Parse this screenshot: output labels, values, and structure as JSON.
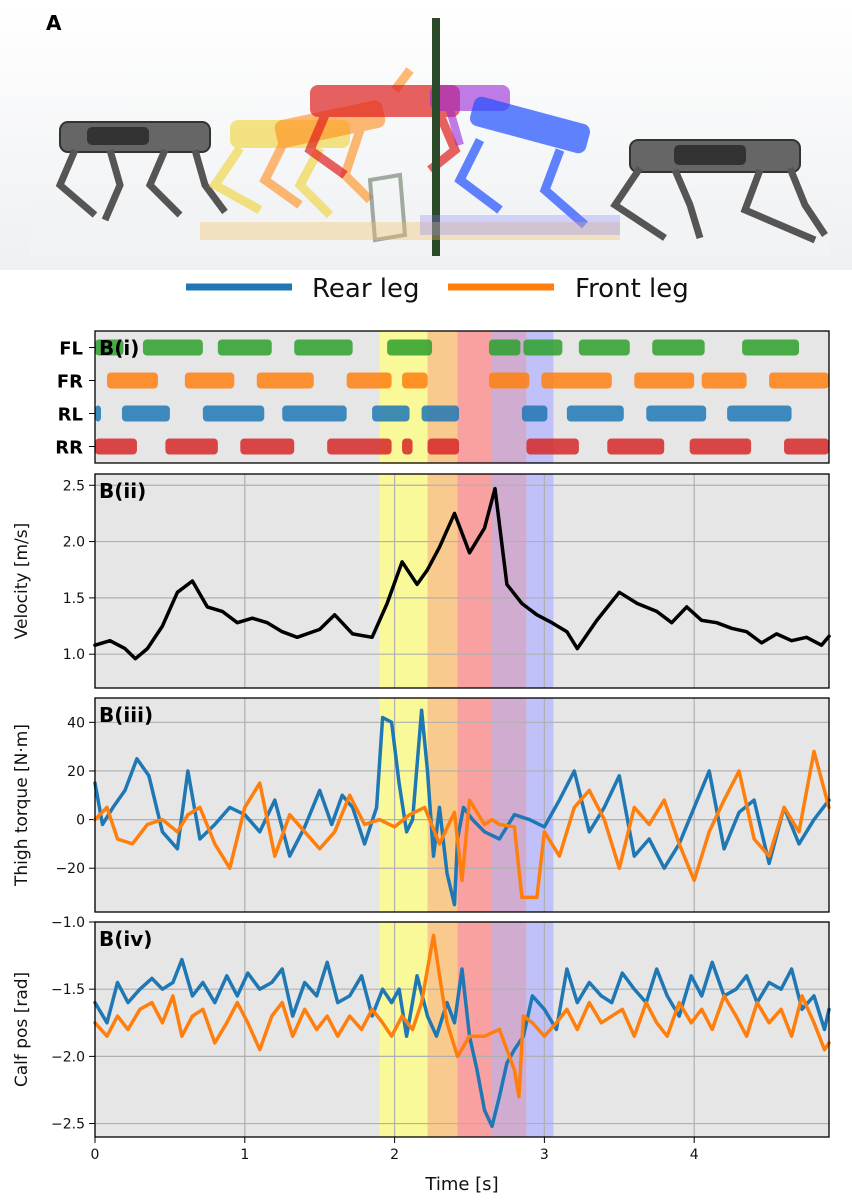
{
  "panel_a": {
    "label": "A"
  },
  "legend": [
    {
      "name": "Rear leg",
      "color": "#1f77b4"
    },
    {
      "name": "Front leg",
      "color": "#ff7f0e"
    }
  ],
  "chart_data": [
    {
      "type": "gait",
      "panel_label": "B(i)",
      "legs": [
        {
          "name": "FL",
          "color": "#2ca02c",
          "stance": [
            [
              0.0,
              0.19
            ],
            [
              0.32,
              0.72
            ],
            [
              0.82,
              1.18
            ],
            [
              1.33,
              1.72
            ],
            [
              1.95,
              2.25
            ],
            [
              2.63,
              2.84
            ],
            [
              2.86,
              3.12
            ],
            [
              3.23,
              3.57
            ],
            [
              3.72,
              4.07
            ],
            [
              4.32,
              4.7
            ]
          ]
        },
        {
          "name": "FR",
          "color": "#ff7f0e",
          "stance": [
            [
              0.08,
              0.42
            ],
            [
              0.6,
              0.93
            ],
            [
              1.08,
              1.46
            ],
            [
              1.68,
              1.98
            ],
            [
              2.05,
              2.22
            ],
            [
              2.63,
              2.9
            ],
            [
              2.98,
              3.45
            ],
            [
              3.6,
              4.0
            ],
            [
              4.05,
              4.35
            ],
            [
              4.5,
              4.9
            ]
          ]
        },
        {
          "name": "RL",
          "color": "#1f77b4",
          "stance": [
            [
              0.0,
              0.04
            ],
            [
              0.18,
              0.5
            ],
            [
              0.72,
              1.13
            ],
            [
              1.25,
              1.68
            ],
            [
              1.85,
              2.1
            ],
            [
              2.18,
              2.43
            ],
            [
              2.85,
              3.02
            ],
            [
              3.15,
              3.53
            ],
            [
              3.68,
              4.08
            ],
            [
              4.22,
              4.65
            ]
          ]
        },
        {
          "name": "RR",
          "color": "#d62728",
          "stance": [
            [
              0.0,
              0.28
            ],
            [
              0.47,
              0.82
            ],
            [
              0.97,
              1.33
            ],
            [
              1.55,
              1.98
            ],
            [
              2.05,
              2.12
            ],
            [
              2.22,
              2.43
            ],
            [
              2.88,
              3.23
            ],
            [
              3.42,
              3.8
            ],
            [
              3.97,
              4.38
            ],
            [
              4.6,
              4.9
            ]
          ]
        }
      ],
      "xlim": [
        0,
        4.9
      ]
    },
    {
      "type": "line",
      "panel_label": "B(ii)",
      "ylabel": "Velocity [m/s]",
      "ylim": [
        0.7,
        2.6
      ],
      "yticks": [
        1.0,
        1.5,
        2.0,
        2.5
      ],
      "xlim": [
        0,
        4.9
      ],
      "series": [
        {
          "color": "#000000",
          "x": [
            0.0,
            0.1,
            0.2,
            0.27,
            0.35,
            0.45,
            0.55,
            0.65,
            0.75,
            0.85,
            0.95,
            1.05,
            1.15,
            1.25,
            1.35,
            1.5,
            1.6,
            1.72,
            1.85,
            1.95,
            2.05,
            2.15,
            2.22,
            2.3,
            2.4,
            2.5,
            2.6,
            2.67,
            2.75,
            2.85,
            2.95,
            3.05,
            3.15,
            3.22,
            3.35,
            3.5,
            3.62,
            3.75,
            3.85,
            3.95,
            4.05,
            4.15,
            4.25,
            4.35,
            4.45,
            4.55,
            4.65,
            4.75,
            4.85,
            4.9
          ],
          "y": [
            1.08,
            1.12,
            1.05,
            0.96,
            1.05,
            1.25,
            1.55,
            1.65,
            1.42,
            1.38,
            1.28,
            1.32,
            1.28,
            1.2,
            1.15,
            1.22,
            1.35,
            1.18,
            1.15,
            1.45,
            1.82,
            1.62,
            1.75,
            1.95,
            2.25,
            1.9,
            2.12,
            2.47,
            1.62,
            1.45,
            1.35,
            1.28,
            1.2,
            1.05,
            1.3,
            1.55,
            1.45,
            1.38,
            1.28,
            1.42,
            1.3,
            1.28,
            1.23,
            1.2,
            1.1,
            1.18,
            1.12,
            1.15,
            1.08,
            1.16
          ]
        }
      ]
    },
    {
      "type": "line",
      "panel_label": "B(iii)",
      "ylabel": "Thigh torque [N·m]",
      "ylim": [
        -38,
        50
      ],
      "yticks": [
        -20,
        0,
        20,
        40
      ],
      "xlim": [
        0,
        4.9
      ],
      "series": [
        {
          "name": "Rear leg",
          "color": "#1f77b4",
          "x": [
            0.0,
            0.05,
            0.12,
            0.2,
            0.28,
            0.36,
            0.45,
            0.55,
            0.62,
            0.7,
            0.8,
            0.9,
            1.0,
            1.1,
            1.2,
            1.3,
            1.4,
            1.5,
            1.58,
            1.65,
            1.72,
            1.8,
            1.88,
            1.92,
            1.98,
            2.03,
            2.08,
            2.12,
            2.18,
            2.22,
            2.26,
            2.3,
            2.35,
            2.4,
            2.42,
            2.46,
            2.52,
            2.6,
            2.7,
            2.8,
            2.9,
            3.0,
            3.1,
            3.2,
            3.3,
            3.4,
            3.5,
            3.6,
            3.7,
            3.8,
            3.9,
            4.0,
            4.1,
            4.2,
            4.3,
            4.4,
            4.5,
            4.6,
            4.7,
            4.8,
            4.9
          ],
          "y": [
            15,
            -2,
            5,
            12,
            25,
            18,
            -5,
            -12,
            20,
            -8,
            -2,
            5,
            2,
            -5,
            8,
            -15,
            -3,
            12,
            -2,
            10,
            5,
            -10,
            5,
            42,
            40,
            15,
            -5,
            0,
            45,
            20,
            -15,
            5,
            -22,
            -35,
            -8,
            5,
            0,
            -5,
            -8,
            2,
            0,
            -3,
            8,
            20,
            -5,
            5,
            18,
            -15,
            -8,
            -20,
            -10,
            5,
            20,
            -12,
            3,
            8,
            -18,
            5,
            -10,
            0,
            8
          ]
        },
        {
          "name": "Front leg",
          "color": "#ff7f0e",
          "x": [
            0.0,
            0.08,
            0.15,
            0.25,
            0.35,
            0.45,
            0.55,
            0.62,
            0.7,
            0.8,
            0.9,
            1.0,
            1.1,
            1.2,
            1.3,
            1.4,
            1.5,
            1.6,
            1.7,
            1.8,
            1.9,
            2.0,
            2.1,
            2.2,
            2.3,
            2.4,
            2.45,
            2.5,
            2.6,
            2.65,
            2.7,
            2.8,
            2.85,
            2.9,
            2.95,
            3.0,
            3.1,
            3.2,
            3.3,
            3.4,
            3.5,
            3.6,
            3.7,
            3.8,
            3.9,
            4.0,
            4.1,
            4.2,
            4.3,
            4.4,
            4.5,
            4.6,
            4.7,
            4.8,
            4.9
          ],
          "y": [
            0,
            5,
            -8,
            -10,
            -2,
            0,
            -5,
            2,
            5,
            -10,
            -20,
            5,
            15,
            -15,
            2,
            -5,
            -12,
            -5,
            10,
            -2,
            0,
            -3,
            2,
            5,
            -10,
            3,
            -25,
            8,
            -2,
            0,
            -2,
            -3,
            -32,
            -32,
            -32,
            -5,
            -15,
            5,
            12,
            0,
            -20,
            5,
            -2,
            8,
            -10,
            -25,
            -5,
            8,
            20,
            -8,
            -15,
            5,
            -5,
            28,
            5
          ]
        }
      ]
    },
    {
      "type": "line",
      "panel_label": "B(iv)",
      "ylabel": "Calf pos [rad]",
      "xlabel": "Time [s]",
      "ylim": [
        -2.6,
        -1.0
      ],
      "yticks": [
        -2.5,
        -2.0,
        -1.5,
        -1.0
      ],
      "xlim": [
        0,
        4.9
      ],
      "xticks": [
        0,
        1,
        2,
        3,
        4
      ],
      "series": [
        {
          "name": "Rear leg",
          "color": "#1f77b4",
          "x": [
            0.0,
            0.08,
            0.15,
            0.22,
            0.3,
            0.38,
            0.45,
            0.52,
            0.58,
            0.65,
            0.72,
            0.8,
            0.88,
            0.95,
            1.02,
            1.1,
            1.18,
            1.25,
            1.32,
            1.4,
            1.48,
            1.55,
            1.62,
            1.7,
            1.78,
            1.85,
            1.92,
            1.98,
            2.03,
            2.08,
            2.15,
            2.22,
            2.28,
            2.35,
            2.4,
            2.45,
            2.5,
            2.55,
            2.6,
            2.65,
            2.7,
            2.75,
            2.8,
            2.86,
            2.92,
            3.0,
            3.08,
            3.15,
            3.22,
            3.3,
            3.38,
            3.45,
            3.52,
            3.6,
            3.68,
            3.75,
            3.82,
            3.9,
            3.98,
            4.05,
            4.12,
            4.2,
            4.28,
            4.35,
            4.42,
            4.5,
            4.58,
            4.65,
            4.72,
            4.8,
            4.87,
            4.9
          ],
          "y": [
            -1.6,
            -1.75,
            -1.45,
            -1.6,
            -1.5,
            -1.42,
            -1.5,
            -1.45,
            -1.28,
            -1.55,
            -1.45,
            -1.6,
            -1.4,
            -1.55,
            -1.38,
            -1.5,
            -1.45,
            -1.35,
            -1.7,
            -1.45,
            -1.55,
            -1.3,
            -1.6,
            -1.55,
            -1.4,
            -1.7,
            -1.5,
            -1.6,
            -1.5,
            -1.85,
            -1.4,
            -1.7,
            -1.85,
            -1.6,
            -1.75,
            -1.35,
            -1.85,
            -2.1,
            -2.4,
            -2.52,
            -2.3,
            -2.05,
            -1.95,
            -1.85,
            -1.55,
            -1.65,
            -1.8,
            -1.35,
            -1.6,
            -1.45,
            -1.55,
            -1.6,
            -1.38,
            -1.5,
            -1.6,
            -1.35,
            -1.55,
            -1.7,
            -1.4,
            -1.55,
            -1.3,
            -1.55,
            -1.5,
            -1.4,
            -1.6,
            -1.45,
            -1.5,
            -1.35,
            -1.65,
            -1.55,
            -1.8,
            -1.65
          ]
        },
        {
          "name": "Front leg",
          "color": "#ff7f0e",
          "x": [
            0.0,
            0.08,
            0.15,
            0.22,
            0.3,
            0.38,
            0.45,
            0.52,
            0.58,
            0.65,
            0.72,
            0.8,
            0.88,
            0.95,
            1.02,
            1.1,
            1.18,
            1.25,
            1.32,
            1.4,
            1.48,
            1.55,
            1.62,
            1.7,
            1.78,
            1.85,
            1.92,
            1.98,
            2.05,
            2.12,
            2.18,
            2.22,
            2.26,
            2.3,
            2.35,
            2.42,
            2.5,
            2.6,
            2.7,
            2.75,
            2.8,
            2.83,
            2.86,
            2.92,
            3.0,
            3.08,
            3.15,
            3.22,
            3.3,
            3.38,
            3.45,
            3.52,
            3.6,
            3.68,
            3.75,
            3.82,
            3.9,
            3.98,
            4.05,
            4.12,
            4.2,
            4.28,
            4.35,
            4.42,
            4.5,
            4.58,
            4.65,
            4.72,
            4.8,
            4.87,
            4.9
          ],
          "y": [
            -1.75,
            -1.85,
            -1.7,
            -1.8,
            -1.65,
            -1.6,
            -1.75,
            -1.55,
            -1.85,
            -1.7,
            -1.65,
            -1.9,
            -1.75,
            -1.6,
            -1.75,
            -1.95,
            -1.7,
            -1.6,
            -1.85,
            -1.65,
            -1.8,
            -1.7,
            -1.85,
            -1.7,
            -1.8,
            -1.65,
            -1.75,
            -1.85,
            -1.7,
            -1.8,
            -1.6,
            -1.35,
            -1.1,
            -1.4,
            -1.75,
            -2.0,
            -1.85,
            -1.85,
            -1.8,
            -1.95,
            -2.1,
            -2.3,
            -1.7,
            -1.75,
            -1.85,
            -1.75,
            -1.65,
            -1.8,
            -1.6,
            -1.75,
            -1.7,
            -1.65,
            -1.85,
            -1.6,
            -1.75,
            -1.85,
            -1.6,
            -1.75,
            -1.65,
            -1.8,
            -1.55,
            -1.7,
            -1.85,
            -1.6,
            -1.75,
            -1.65,
            -1.85,
            -1.55,
            -1.75,
            -1.95,
            -1.9
          ]
        }
      ]
    }
  ],
  "phases": [
    {
      "x0": 1.9,
      "x1": 2.22,
      "color": "#ffff80"
    },
    {
      "x0": 2.22,
      "x1": 2.42,
      "color": "#ffc070"
    },
    {
      "x0": 2.42,
      "x1": 2.65,
      "color": "#ff8a8a"
    },
    {
      "x0": 2.65,
      "x1": 2.88,
      "color": "#c89ac8"
    },
    {
      "x0": 2.88,
      "x1": 3.06,
      "color": "#b4b4ff"
    }
  ]
}
